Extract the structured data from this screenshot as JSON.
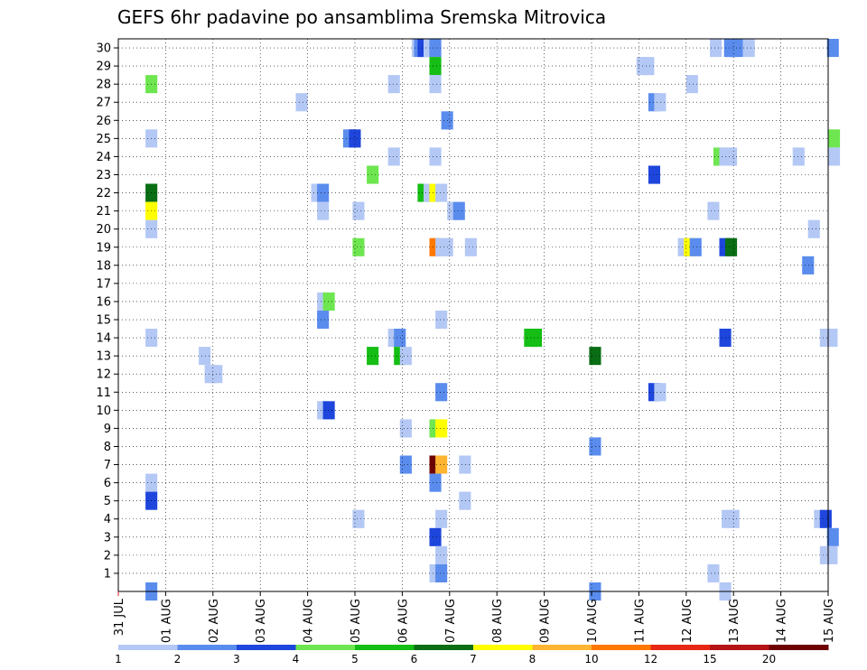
{
  "chart_data": {
    "type": "heatmap",
    "title": "GEFS 6hr padavine po ansamblima Sremska Mitrovica",
    "x_tick_labels": [
      "31 JUL",
      "01 AUG",
      "02 AUG",
      "03 AUG",
      "04 AUG",
      "05 AUG",
      "06 AUG",
      "07 AUG",
      "08 AUG",
      "09 AUG",
      "10 AUG",
      "11 AUG",
      "12 AUG",
      "13 AUG",
      "14 AUG",
      "15 AUG"
    ],
    "y_tick_labels": [
      "1",
      "2",
      "3",
      "4",
      "5",
      "6",
      "7",
      "8",
      "9",
      "10",
      "11",
      "12",
      "13",
      "14",
      "15",
      "16",
      "17",
      "18",
      "19",
      "20",
      "21",
      "22",
      "23",
      "24",
      "25",
      "26",
      "27",
      "28",
      "29",
      "30"
    ],
    "x_range_days": [
      0,
      15
    ],
    "y_range_members": [
      0,
      30
    ],
    "time_step_hours": 6,
    "grid": "dotted",
    "color_scale": {
      "labels": [
        "1",
        "2",
        "3",
        "4",
        "5",
        "6",
        "7",
        "8",
        "10",
        "12",
        "15",
        "20"
      ],
      "colors": [
        "#b4c8f5",
        "#5a8ced",
        "#1e46dc",
        "#6ee650",
        "#14be14",
        "#0a6e14",
        "#ffff00",
        "#ffb432",
        "#ff7800",
        "#e62814",
        "#b41414",
        "#6e0000"
      ]
    },
    "cells": [
      {
        "member": 30,
        "t": 24.8,
        "c": 1
      },
      {
        "member": 30,
        "t": 25.0,
        "c": 2
      },
      {
        "member": 30,
        "t": 25.3,
        "c": 3
      },
      {
        "member": 30,
        "t": 25.8,
        "c": 1
      },
      {
        "member": 30,
        "t": 26.3,
        "c": 2
      },
      {
        "member": 30,
        "t": 50.0,
        "c": 1
      },
      {
        "member": 30,
        "t": 51.2,
        "c": 2
      },
      {
        "member": 30,
        "t": 51.5,
        "c": 2
      },
      {
        "member": 30,
        "t": 51.8,
        "c": 2
      },
      {
        "member": 30,
        "t": 52.8,
        "c": 1
      },
      {
        "member": 30,
        "t": 59.9,
        "c": 2
      },
      {
        "member": 29,
        "t": 26.3,
        "c": 5
      },
      {
        "member": 29,
        "t": 43.8,
        "c": 1
      },
      {
        "member": 29,
        "t": 44.3,
        "c": 1
      },
      {
        "member": 28,
        "t": 2.3,
        "c": 4
      },
      {
        "member": 28,
        "t": 22.8,
        "c": 1
      },
      {
        "member": 28,
        "t": 26.3,
        "c": 1
      },
      {
        "member": 28,
        "t": 48.0,
        "c": 1
      },
      {
        "member": 27,
        "t": 15.0,
        "c": 1
      },
      {
        "member": 27,
        "t": 44.8,
        "c": 2
      },
      {
        "member": 27,
        "t": 45.3,
        "c": 1
      },
      {
        "member": 26,
        "t": 27.3,
        "c": 2
      },
      {
        "member": 25,
        "t": 2.3,
        "c": 1
      },
      {
        "member": 25,
        "t": 19.0,
        "c": 2
      },
      {
        "member": 25,
        "t": 19.5,
        "c": 3
      },
      {
        "member": 25,
        "t": 60.0,
        "c": 4
      },
      {
        "member": 24,
        "t": 22.8,
        "c": 1
      },
      {
        "member": 24,
        "t": 26.3,
        "c": 1
      },
      {
        "member": 24,
        "t": 50.3,
        "c": 4
      },
      {
        "member": 24,
        "t": 50.8,
        "c": 1
      },
      {
        "member": 24,
        "t": 51.3,
        "c": 1
      },
      {
        "member": 24,
        "t": 57.0,
        "c": 1
      },
      {
        "member": 24,
        "t": 60.0,
        "c": 1
      },
      {
        "member": 23,
        "t": 21.0,
        "c": 4
      },
      {
        "member": 23,
        "t": 44.8,
        "c": 3
      },
      {
        "member": 22,
        "t": 2.3,
        "c": 6
      },
      {
        "member": 22,
        "t": 16.3,
        "c": 1
      },
      {
        "member": 22,
        "t": 16.8,
        "c": 2
      },
      {
        "member": 22,
        "t": 25.3,
        "c": 5
      },
      {
        "member": 22,
        "t": 25.8,
        "c": 1
      },
      {
        "member": 22,
        "t": 26.3,
        "c": 7
      },
      {
        "member": 22,
        "t": 26.8,
        "c": 1
      },
      {
        "member": 21,
        "t": 2.3,
        "c": 7
      },
      {
        "member": 21,
        "t": 16.8,
        "c": 1
      },
      {
        "member": 21,
        "t": 19.8,
        "c": 1
      },
      {
        "member": 21,
        "t": 27.8,
        "c": 1
      },
      {
        "member": 21,
        "t": 28.3,
        "c": 2
      },
      {
        "member": 21,
        "t": 49.8,
        "c": 1
      },
      {
        "member": 20,
        "t": 2.3,
        "c": 1
      },
      {
        "member": 20,
        "t": 58.3,
        "c": 1
      },
      {
        "member": 19,
        "t": 19.8,
        "c": 4
      },
      {
        "member": 19,
        "t": 26.3,
        "c": 9
      },
      {
        "member": 19,
        "t": 26.8,
        "c": 1
      },
      {
        "member": 19,
        "t": 27.3,
        "c": 1
      },
      {
        "member": 19,
        "t": 29.3,
        "c": 1
      },
      {
        "member": 19,
        "t": 47.3,
        "c": 1
      },
      {
        "member": 19,
        "t": 47.8,
        "c": 7
      },
      {
        "member": 19,
        "t": 48.3,
        "c": 2
      },
      {
        "member": 19,
        "t": 50.8,
        "c": 3
      },
      {
        "member": 19,
        "t": 51.3,
        "c": 6
      },
      {
        "member": 18,
        "t": 57.8,
        "c": 2
      },
      {
        "member": 16,
        "t": 16.8,
        "c": 1
      },
      {
        "member": 16,
        "t": 17.3,
        "c": 4
      },
      {
        "member": 15,
        "t": 16.8,
        "c": 2
      },
      {
        "member": 15,
        "t": 26.8,
        "c": 1
      },
      {
        "member": 14,
        "t": 2.3,
        "c": 1
      },
      {
        "member": 14,
        "t": 22.8,
        "c": 1
      },
      {
        "member": 14,
        "t": 23.3,
        "c": 2
      },
      {
        "member": 14,
        "t": 34.3,
        "c": 5
      },
      {
        "member": 14,
        "t": 34.8,
        "c": 5
      },
      {
        "member": 14,
        "t": 50.8,
        "c": 3
      },
      {
        "member": 14,
        "t": 59.3,
        "c": 1
      },
      {
        "member": 14,
        "t": 59.8,
        "c": 1
      },
      {
        "member": 13,
        "t": 6.8,
        "c": 1
      },
      {
        "member": 13,
        "t": 21.0,
        "c": 5
      },
      {
        "member": 13,
        "t": 23.3,
        "c": 5
      },
      {
        "member": 13,
        "t": 23.8,
        "c": 1
      },
      {
        "member": 13,
        "t": 39.8,
        "c": 6
      },
      {
        "member": 12,
        "t": 7.3,
        "c": 1
      },
      {
        "member": 12,
        "t": 7.8,
        "c": 1
      },
      {
        "member": 11,
        "t": 26.8,
        "c": 2
      },
      {
        "member": 11,
        "t": 44.8,
        "c": 3
      },
      {
        "member": 11,
        "t": 45.3,
        "c": 1
      },
      {
        "member": 10,
        "t": 16.8,
        "c": 1
      },
      {
        "member": 10,
        "t": 17.3,
        "c": 3
      },
      {
        "member": 9,
        "t": 23.8,
        "c": 1
      },
      {
        "member": 9,
        "t": 26.3,
        "c": 4
      },
      {
        "member": 9,
        "t": 26.8,
        "c": 7
      },
      {
        "member": 8,
        "t": 39.8,
        "c": 2
      },
      {
        "member": 7,
        "t": 23.8,
        "c": 2
      },
      {
        "member": 7,
        "t": 26.3,
        "c": 12
      },
      {
        "member": 7,
        "t": 26.8,
        "c": 8
      },
      {
        "member": 7,
        "t": 28.8,
        "c": 1
      },
      {
        "member": 6,
        "t": 2.3,
        "c": 1
      },
      {
        "member": 6,
        "t": 26.3,
        "c": 2
      },
      {
        "member": 5,
        "t": 2.3,
        "c": 3
      },
      {
        "member": 5,
        "t": 28.8,
        "c": 1
      },
      {
        "member": 4,
        "t": 19.8,
        "c": 1
      },
      {
        "member": 4,
        "t": 26.8,
        "c": 1
      },
      {
        "member": 4,
        "t": 51.0,
        "c": 1
      },
      {
        "member": 4,
        "t": 51.5,
        "c": 1
      },
      {
        "member": 4,
        "t": 58.8,
        "c": 1
      },
      {
        "member": 4,
        "t": 59.3,
        "c": 3
      },
      {
        "member": 3,
        "t": 26.3,
        "c": 3
      },
      {
        "member": 3,
        "t": 59.9,
        "c": 2
      },
      {
        "member": 2,
        "t": 26.8,
        "c": 1
      },
      {
        "member": 2,
        "t": 59.3,
        "c": 1
      },
      {
        "member": 2,
        "t": 59.8,
        "c": 1
      },
      {
        "member": 1,
        "t": 26.3,
        "c": 1
      },
      {
        "member": 1,
        "t": 26.8,
        "c": 2
      },
      {
        "member": 1,
        "t": 49.8,
        "c": 1
      },
      {
        "member": 0,
        "t": 2.3,
        "c": 2
      },
      {
        "member": 0,
        "t": 39.8,
        "c": 2
      },
      {
        "member": 0,
        "t": 50.8,
        "c": 1
      }
    ]
  }
}
